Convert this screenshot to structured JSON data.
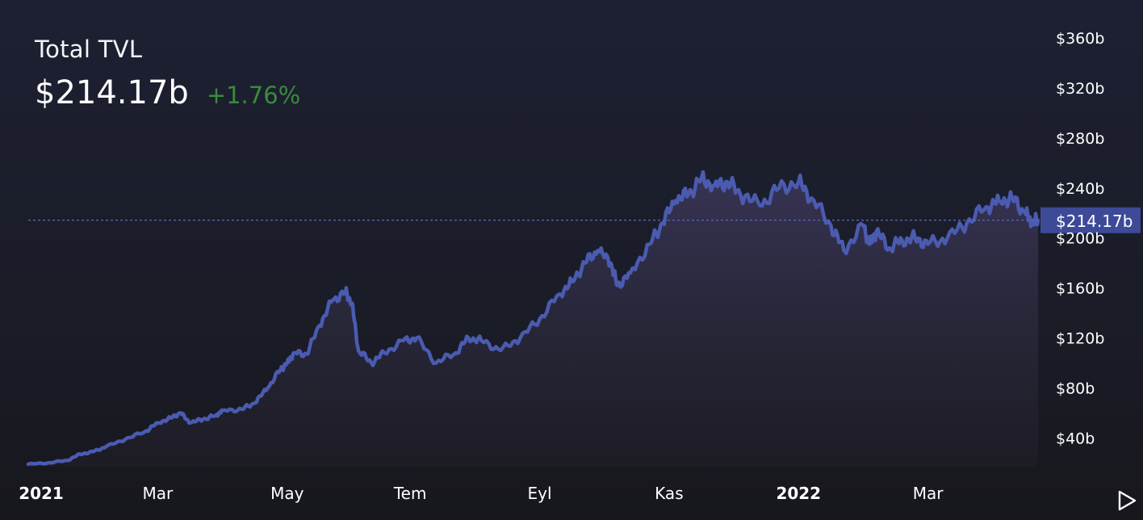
{
  "header": {
    "title": "Total TVL",
    "value": "$214.17b",
    "change": "+1.76%"
  },
  "colors": {
    "line": "#4a5bb0",
    "badge": "#3d4a98",
    "change_positive": "#3b8a3e",
    "background": "#1b1d29"
  },
  "play_icon": "play-triangle-icon",
  "chart_data": {
    "type": "area",
    "y_tick_labels": [
      "$40b",
      "$80b",
      "$120b",
      "$160b",
      "$200b",
      "$240b",
      "$280b",
      "$320b",
      "$360b"
    ],
    "y_ticks": [
      40,
      80,
      120,
      160,
      200,
      240,
      280,
      320,
      360
    ],
    "x_tick_labels": [
      "2021",
      "Mar",
      "May",
      "Tem",
      "Eyl",
      "Kas",
      "2022",
      "Mar"
    ],
    "x_tick_positions": [
      0.2,
      2,
      4,
      5.9,
      7.9,
      9.9,
      11.9,
      13.9
    ],
    "xlim": [
      0,
      15.6
    ],
    "ylim": [
      17,
      360
    ],
    "current_label": "$214.17b",
    "current_value": 214.17,
    "series": [
      {
        "x": [
          0,
          0.3,
          0.6,
          0.8,
          1.0,
          1.2,
          1.5,
          1.8,
          2.0,
          2.2,
          2.35,
          2.5,
          2.7,
          2.9,
          3.0,
          3.3,
          3.5,
          3.7,
          3.9,
          4.0,
          4.1,
          4.3,
          4.5,
          4.7,
          4.9,
          5.0,
          5.1,
          5.3,
          5.5,
          5.8,
          6.0,
          6.3,
          6.6,
          6.8,
          7.0,
          7.3,
          7.6,
          7.9,
          8.2,
          8.4,
          8.6,
          8.8,
          9.0,
          9.1,
          9.3,
          9.6,
          9.8,
          10.0,
          10.2,
          10.4,
          10.6,
          10.8,
          11.0,
          11.3,
          11.6,
          11.9,
          12.1,
          12.4,
          12.6,
          12.9,
          13.0,
          13.1,
          13.3,
          13.5,
          13.7,
          13.9,
          14.2,
          14.5,
          14.8,
          15.0,
          15.2,
          15.4,
          15.5,
          15.6
        ],
        "values": [
          19,
          20,
          22,
          27,
          29,
          33,
          39,
          45,
          52,
          56,
          60,
          52,
          55,
          58,
          62,
          63,
          68,
          80,
          95,
          100,
          108,
          107,
          130,
          150,
          157,
          148,
          110,
          100,
          108,
          118,
          120,
          100,
          108,
          120,
          118,
          110,
          120,
          135,
          155,
          165,
          180,
          190,
          180,
          162,
          172,
          195,
          212,
          230,
          235,
          248,
          242,
          245,
          235,
          226,
          240,
          245,
          232,
          210,
          190,
          210,
          195,
          205,
          192,
          198,
          200,
          195,
          200,
          212,
          225,
          230,
          232,
          220,
          212,
          214
        ]
      }
    ]
  }
}
